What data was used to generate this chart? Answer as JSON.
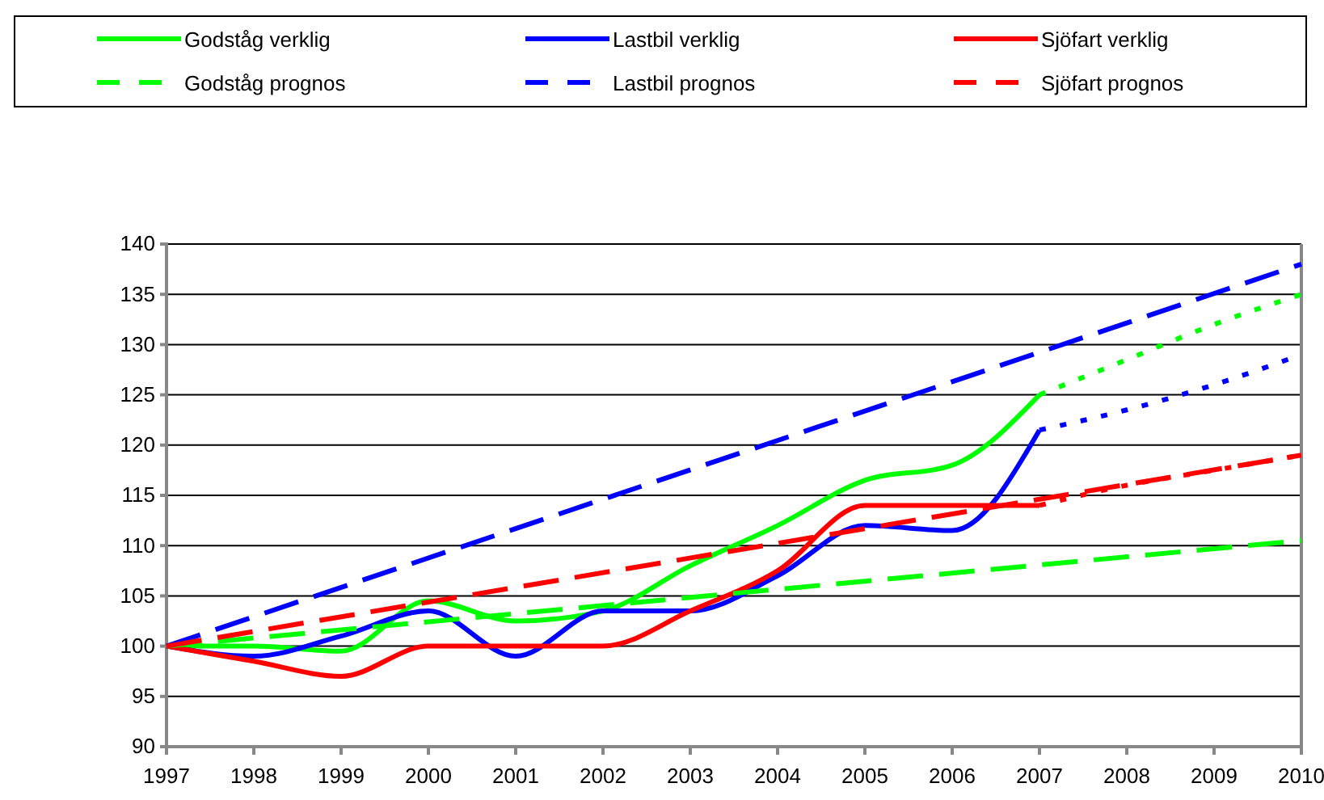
{
  "chart_data": {
    "type": "line",
    "x": [
      1997,
      1998,
      1999,
      2000,
      2001,
      2002,
      2003,
      2004,
      2005,
      2006,
      2007
    ],
    "series": [
      {
        "name": "Godståg verklig",
        "color": "#00ff00",
        "line_style": "solid",
        "values": [
          100,
          100,
          99.5,
          104.5,
          102.5,
          103.5,
          108,
          112,
          116.5,
          118,
          125
        ]
      },
      {
        "name": "Lastbil verklig",
        "color": "#0000ff",
        "line_style": "solid",
        "values": [
          100,
          99,
          101,
          103.5,
          99,
          103.5,
          103.5,
          107,
          112,
          111.5,
          121.5
        ]
      },
      {
        "name": "Sjöfart verklig",
        "color": "#ff0000",
        "line_style": "solid",
        "values": [
          100,
          98.5,
          97,
          100,
          100,
          100,
          103.5,
          107.5,
          114,
          114,
          114
        ]
      },
      {
        "name": "Godståg prognos",
        "color": "#00ff00",
        "line_style": "dashed",
        "x": [
          1997,
          2010
        ],
        "values": [
          100,
          110.5
        ]
      },
      {
        "name": "Lastbil prognos",
        "color": "#0000ff",
        "line_style": "dashed",
        "x": [
          1997,
          2010
        ],
        "values": [
          100,
          138
        ]
      },
      {
        "name": "Sjöfart prognos",
        "color": "#ff0000",
        "line_style": "dashed",
        "x": [
          1997,
          2010
        ],
        "values": [
          100,
          119
        ]
      },
      {
        "color": "#00ff00",
        "line_style": "dotted",
        "x": [
          2007,
          2008,
          2009,
          2010
        ],
        "values": [
          125,
          128.5,
          132,
          135
        ]
      },
      {
        "color": "#0000ff",
        "line_style": "dotted",
        "x": [
          2007,
          2008,
          2009,
          2010
        ],
        "values": [
          121.5,
          123.5,
          126,
          129
        ]
      },
      {
        "color": "#ff0000",
        "line_style": "dotted",
        "x": [
          2007,
          2008,
          2009,
          2010
        ],
        "values": [
          114,
          116,
          117.5,
          119
        ]
      }
    ],
    "xlim": [
      1997,
      2010
    ],
    "xticks": [
      1997,
      1998,
      1999,
      2000,
      2001,
      2002,
      2003,
      2004,
      2005,
      2006,
      2007,
      2008,
      2009,
      2010
    ],
    "ylim": [
      90,
      140
    ],
    "yticks": [
      90,
      95,
      100,
      105,
      110,
      115,
      120,
      125,
      130,
      135,
      140
    ],
    "grid": "y",
    "legend": "top",
    "marker": "none"
  }
}
